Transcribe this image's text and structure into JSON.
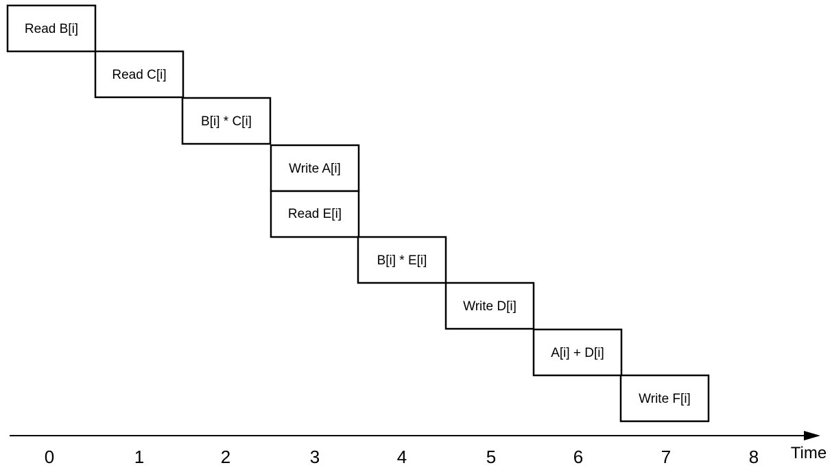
{
  "operations": [
    {
      "label": "Read B[i]"
    },
    {
      "label": "Read C[i]"
    },
    {
      "label": "B[i] * C[i]"
    },
    {
      "label": "Write A[i]"
    },
    {
      "label": "Read E[i]"
    },
    {
      "label": "B[i] * E[i]"
    },
    {
      "label": "Write D[i]"
    },
    {
      "label": "A[i] + D[i]"
    },
    {
      "label": "Write F[i]"
    }
  ],
  "axis": {
    "title": "Time",
    "ticks": [
      "0",
      "1",
      "2",
      "3",
      "4",
      "5",
      "6",
      "7",
      "8"
    ]
  },
  "colors": {
    "stroke": "#000000",
    "background": "#ffffff"
  }
}
